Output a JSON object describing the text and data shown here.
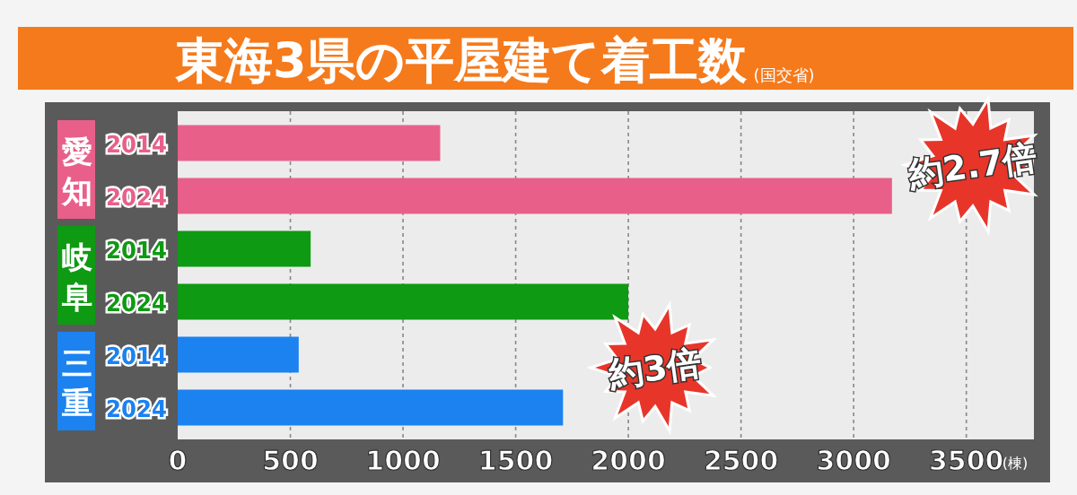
{
  "chart_data": {
    "type": "bar",
    "orientation": "horizontal",
    "title": "東海3県の平屋建て着工数",
    "subtitle": "(国交省)",
    "xlabel": "(棟)",
    "categories": [
      "2014",
      "2024",
      "2014",
      "2024",
      "2014",
      "2024"
    ],
    "series": [
      {
        "name": "愛知",
        "color": "#e8608a",
        "values": [
          1165,
          3170,
          null,
          null,
          null,
          null
        ]
      },
      {
        "name": "岐阜",
        "color": "#0e9a12",
        "values": [
          null,
          null,
          590,
          2000,
          null,
          null
        ]
      },
      {
        "name": "三重",
        "color": "#1b82f0",
        "values": [
          null,
          null,
          null,
          null,
          537,
          1710
        ]
      }
    ],
    "xlim": [
      0,
      3800
    ],
    "xticks": [
      0,
      500,
      1000,
      1500,
      2000,
      2500,
      3000,
      3500
    ],
    "grid": "x",
    "annotations": [
      "約2.7倍",
      "約3倍"
    ]
  }
}
